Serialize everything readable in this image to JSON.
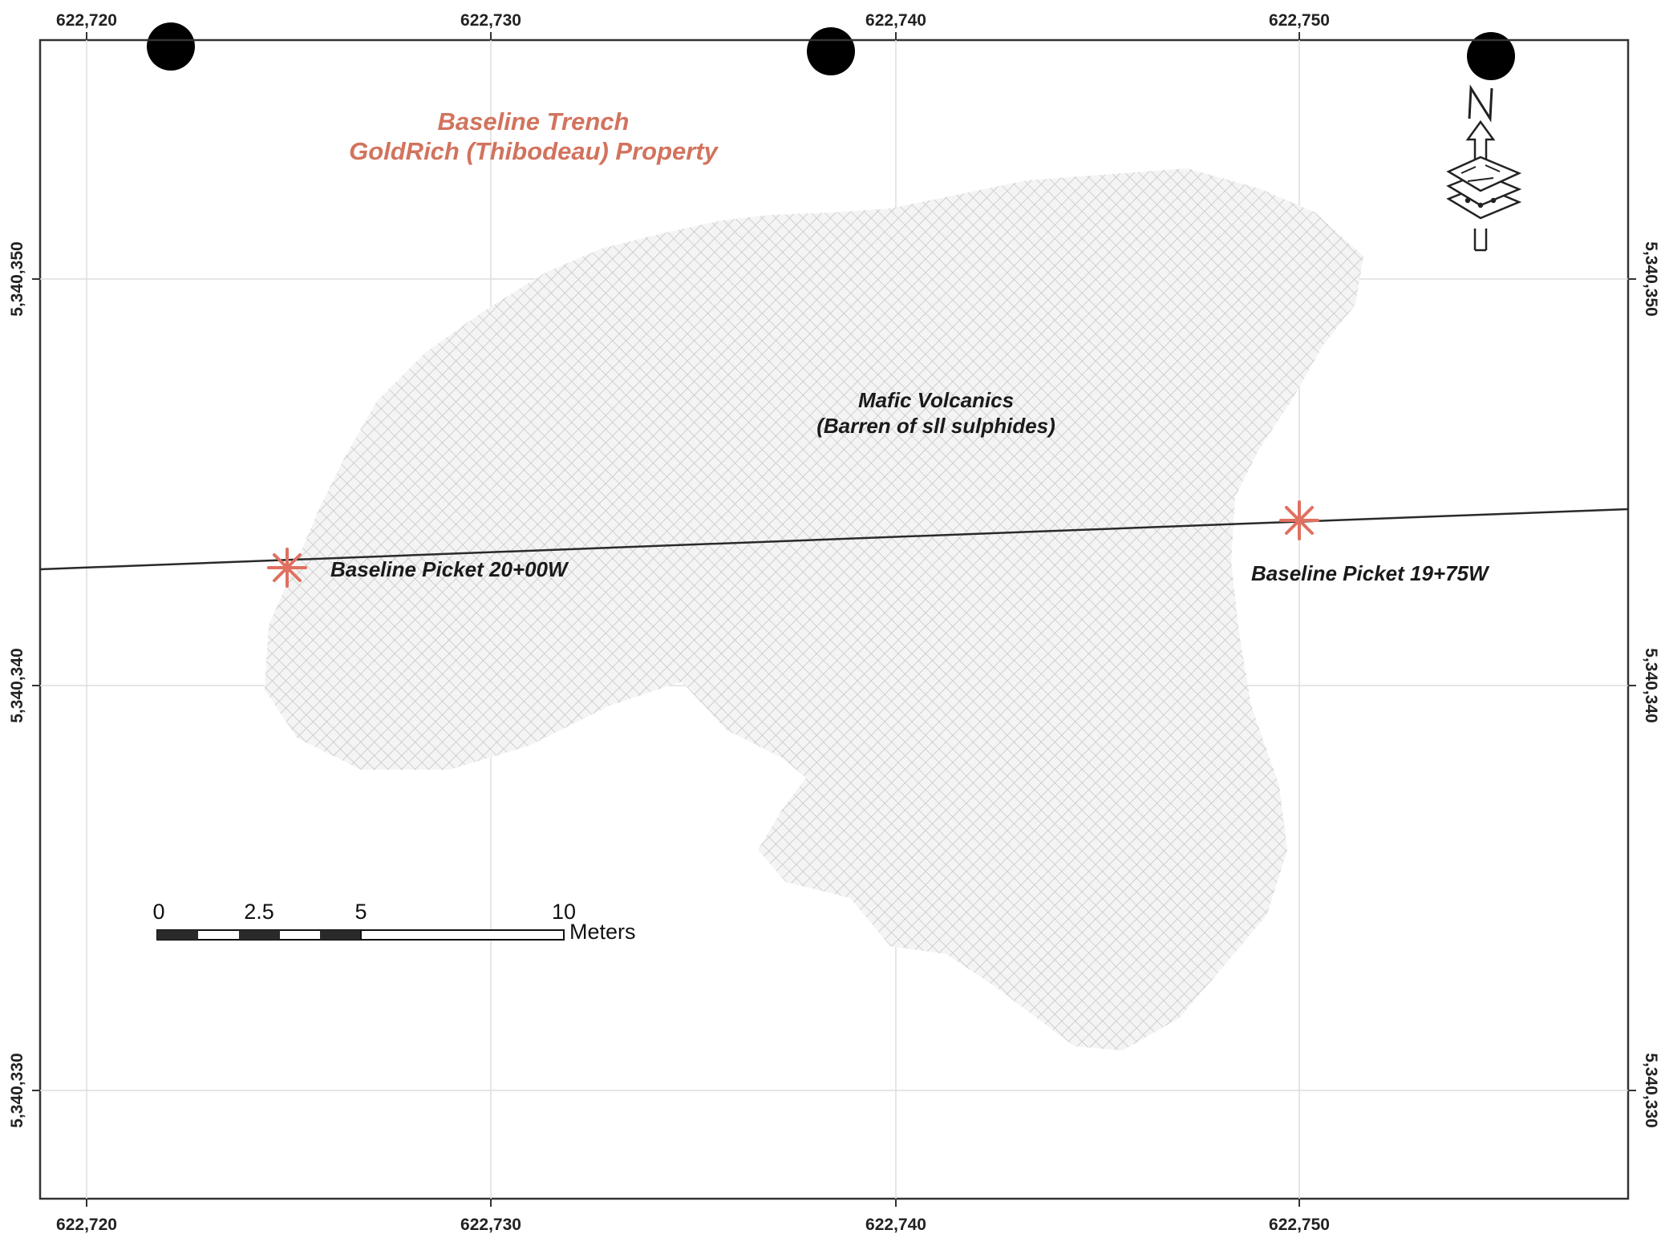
{
  "map": {
    "title_line1": "Baseline Trench",
    "title_line2": "GoldRich (Thibodeau) Property",
    "grid": {
      "x_ticks": [
        "622,720",
        "622,730",
        "622,740",
        "622,750"
      ],
      "y_ticks": [
        "5,340,350",
        "5,340,340",
        "5,340,330"
      ]
    },
    "geology_unit": {
      "name": "Mafic Volcanics",
      "note": "(Barren of sll sulphides)"
    },
    "pickets": [
      {
        "label": "Baseline Picket 20+00W"
      },
      {
        "label": "Baseline Picket 19+75W"
      }
    ],
    "scale_bar": {
      "labels": [
        "0",
        "2.5",
        "5",
        "10"
      ],
      "unit": "Meters"
    },
    "north_arrow": {
      "letter": "N"
    },
    "colors": {
      "title": "#d2735e",
      "picket_marker": "#e07060",
      "hatch": "#c9c9c9",
      "grid": "#dddddd",
      "frame": "#333333"
    },
    "icons": [
      "north-arrow-icon",
      "map-layers-icon",
      "asterisk-picket-icon",
      "binder-hole-icon"
    ]
  }
}
